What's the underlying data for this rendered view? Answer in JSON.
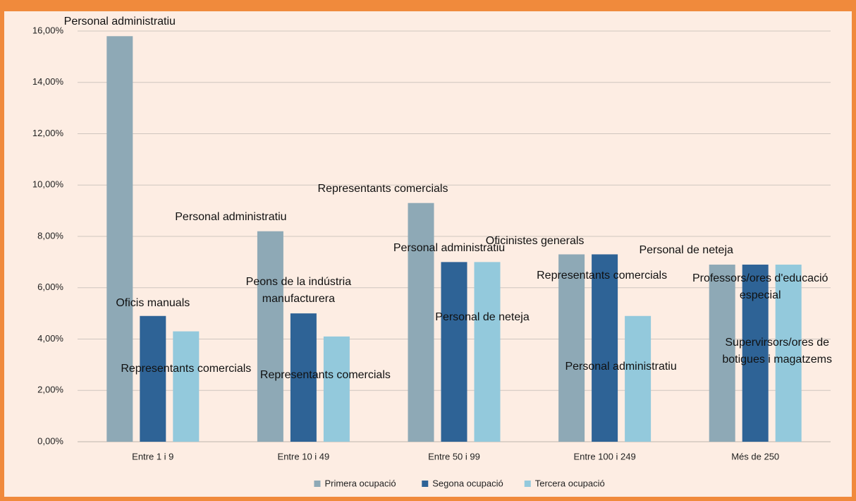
{
  "chart_data": {
    "type": "bar",
    "categories": [
      "Entre 1 i 9",
      "Entre 10 i 49",
      "Entre 50 i 99",
      "Entre 100 i 249",
      "Més de 250"
    ],
    "series": [
      {
        "name": "Primera ocupació",
        "color": "#8ea9b6",
        "values": [
          15.8,
          8.2,
          9.3,
          7.3,
          6.9
        ],
        "labels": [
          "Personal administratiu",
          "Personal administratiu",
          "Representants comercials",
          "Oficinistes generals",
          "Personal de neteja"
        ]
      },
      {
        "name": "Segona ocupació",
        "color": "#2e6396",
        "values": [
          4.9,
          5.0,
          7.0,
          7.3,
          6.9
        ],
        "labels": [
          "Oficis manuals",
          "Peons de la indústria manufacturera",
          "Personal administratiu",
          "Representants comercials",
          "Professors/ores d'educació especial"
        ]
      },
      {
        "name": "Tercera ocupació",
        "color": "#93c9dc",
        "values": [
          4.3,
          4.1,
          7.0,
          4.9,
          6.9
        ],
        "labels": [
          "Representants comercials",
          "Representants comercials",
          "Personal de neteja",
          "Personal administratiu",
          "Supervirsors/ores de botigues i magatzems"
        ]
      }
    ],
    "ylim": [
      0,
      16
    ],
    "yticks": [
      {
        "value": 0,
        "label": "0,00%"
      },
      {
        "value": 2,
        "label": "2,00%"
      },
      {
        "value": 4,
        "label": "4,00%"
      },
      {
        "value": 6,
        "label": "6,00%"
      },
      {
        "value": 8,
        "label": "8,00%"
      },
      {
        "value": 10,
        "label": "10,00%"
      },
      {
        "value": 12,
        "label": "12,00%"
      },
      {
        "value": 14,
        "label": "14,00%"
      },
      {
        "value": 16,
        "label": "16,00%"
      }
    ],
    "grid": true,
    "legend": "bottom"
  }
}
